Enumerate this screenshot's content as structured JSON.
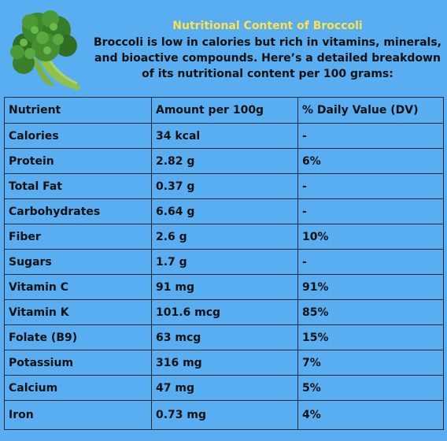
{
  "header": {
    "logo_icon": "broccoli-icon",
    "title": "Nutritional Content of Broccoli",
    "intro": "Broccoli is low in calories but rich in vitamins, minerals, and bioactive compounds. Here’s a detailed breakdown of its nutritional content per 100 grams:"
  },
  "table": {
    "headers": [
      "Nutrient",
      "Amount per 100g",
      "% Daily Value (DV)"
    ],
    "rows": [
      [
        "Calories",
        "34 kcal",
        "-"
      ],
      [
        "Protein",
        "2.82 g",
        "6%"
      ],
      [
        "Total Fat",
        "0.37 g",
        "-"
      ],
      [
        "Carbohydrates",
        "6.64 g",
        "-"
      ],
      [
        "Fiber",
        "2.6 g",
        "10%"
      ],
      [
        "Sugars",
        "1.7 g",
        "-"
      ],
      [
        "Vitamin C",
        "91 mg",
        "91%"
      ],
      [
        "Vitamin K",
        "101.6 mcg",
        "85%"
      ],
      [
        "Folate (B9)",
        "63 mcg",
        "15%"
      ],
      [
        "Potassium",
        "316 mg",
        "7%"
      ],
      [
        "Calcium",
        "47 mg",
        "5%"
      ],
      [
        "Iron",
        "0.73 mg",
        "4%"
      ]
    ]
  },
  "colors": {
    "background": "#58aef0",
    "title": "#ffe24a",
    "text": "#111111",
    "border": "#1f2a36"
  }
}
